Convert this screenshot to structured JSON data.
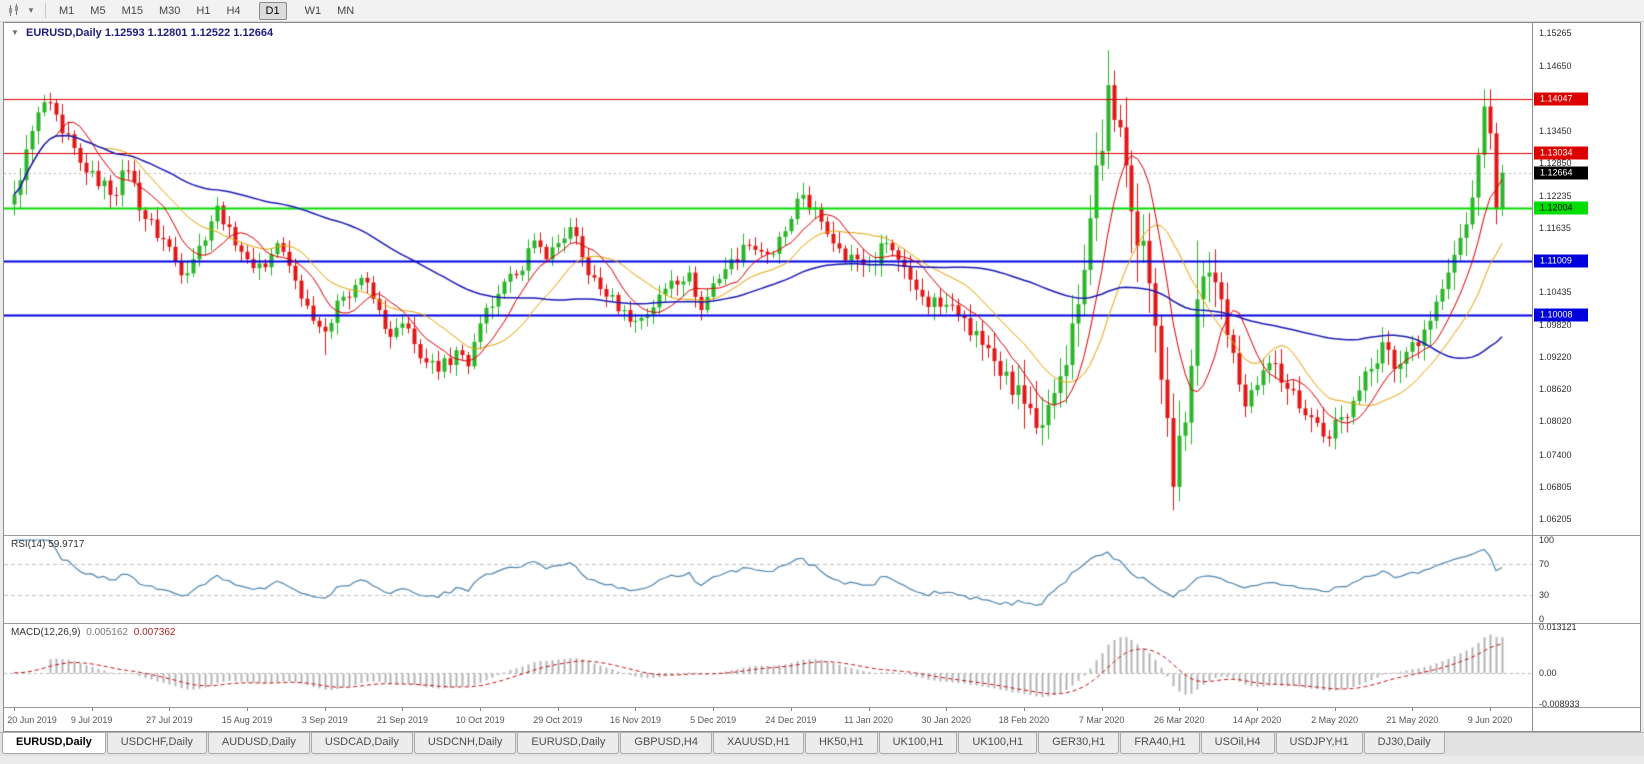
{
  "toolbar": {
    "timeframes": [
      "M1",
      "M5",
      "M15",
      "M30",
      "H1",
      "H4",
      "D1",
      "W1",
      "MN"
    ],
    "active_timeframe": "D1",
    "gap_before": [
      "D1",
      "W1"
    ]
  },
  "chart": {
    "collapse_icon": "▼",
    "title_symbol": "EURUSD,Daily",
    "ohlc_text": "1.12593 1.12801 1.12522 1.12664"
  },
  "indicators": {
    "rsi_label": "RSI(14) 59.9717",
    "macd_label": "MACD(12,26,9)",
    "macd_value": "0.005162",
    "macd_signal_value": "0.007362"
  },
  "chart_data": {
    "type": "candlestick",
    "symbol": "EURUSD",
    "period": "Daily",
    "num_candles": 250,
    "label_step": 13,
    "date_labels": [
      "20 Jun 2019",
      "9 Jul 2019",
      "27 Jul 2019",
      "15 Aug 2019",
      "3 Sep 2019",
      "21 Sep 2019",
      "10 Oct 2019",
      "29 Oct 2019",
      "16 Nov 2019",
      "5 Dec 2019",
      "24 Dec 2019",
      "11 Jan 2020",
      "30 Jan 2020",
      "18 Feb 2020",
      "7 Mar 2020",
      "26 Mar 2020",
      "14 Apr 2020",
      "2 May 2020",
      "21 May 2020",
      "9 Jun 2020"
    ],
    "price_axis": {
      "min": 1.059,
      "max": 1.1546,
      "ticks": [
        "1.15265",
        "1.14650",
        "1.13450",
        "1.12850",
        "1.12235",
        "1.11635",
        "1.10435",
        "1.09820",
        "1.09220",
        "1.08620",
        "1.08020",
        "1.07400",
        "1.06805",
        "1.06205"
      ]
    },
    "level_lines": [
      {
        "price": 1.14047,
        "label": "1.14047",
        "color": "#dd0000",
        "width": 1,
        "box_fg": "#ffffff"
      },
      {
        "price": 1.13034,
        "label": "1.13034",
        "color": "#dd0000",
        "width": 1,
        "box_fg": "#ffffff"
      },
      {
        "price": 1.12004,
        "label": "1.12004",
        "color": "#00dd00",
        "width": 2,
        "box_fg": "#000000"
      },
      {
        "price": 1.11009,
        "label": "1.11009",
        "color": "#0000dd",
        "width": 2,
        "box_fg": "#ffffff"
      },
      {
        "price": 1.10008,
        "label": "1.10008",
        "color": "#0000dd",
        "width": 2,
        "box_fg": "#ffffff"
      }
    ],
    "current_price": {
      "value": 1.12664,
      "label": "1.12664",
      "box_bg": "#000000",
      "box_fg": "#ffffff"
    },
    "price_anchors": [
      {
        "i": 0,
        "p": 1.1225,
        "v": 0.0055
      },
      {
        "i": 2,
        "p": 1.131
      },
      {
        "i": 5,
        "p": 1.1398,
        "h": 1.1412
      },
      {
        "i": 8,
        "p": 1.134
      },
      {
        "i": 11,
        "p": 1.1285
      },
      {
        "i": 13,
        "p": 1.127
      },
      {
        "i": 16,
        "p": 1.1225
      },
      {
        "i": 19,
        "p": 1.127
      },
      {
        "i": 22,
        "p": 1.118
      },
      {
        "i": 26,
        "p": 1.1128
      },
      {
        "i": 28,
        "p": 1.1075
      },
      {
        "i": 31,
        "p": 1.113
      },
      {
        "i": 34,
        "p": 1.1205
      },
      {
        "i": 36,
        "p": 1.1165
      },
      {
        "i": 39,
        "p": 1.1105,
        "v": 0.0045
      },
      {
        "i": 42,
        "p": 1.109
      },
      {
        "i": 44,
        "p": 1.1135
      },
      {
        "i": 47,
        "p": 1.1065
      },
      {
        "i": 50,
        "p": 1.099
      },
      {
        "i": 52,
        "p": 1.097,
        "l": 1.0926
      },
      {
        "i": 55,
        "p": 1.1035
      },
      {
        "i": 58,
        "p": 1.107
      },
      {
        "i": 61,
        "p": 1.101
      },
      {
        "i": 63,
        "p": 1.096
      },
      {
        "i": 65,
        "p": 1.0985
      },
      {
        "i": 68,
        "p": 1.092
      },
      {
        "i": 71,
        "p": 1.0895,
        "l": 1.088
      },
      {
        "i": 74,
        "p": 1.0935
      },
      {
        "i": 76,
        "p": 1.0905
      },
      {
        "i": 78,
        "p": 1.0985
      },
      {
        "i": 81,
        "p": 1.104
      },
      {
        "i": 84,
        "p": 1.1075
      },
      {
        "i": 87,
        "p": 1.114
      },
      {
        "i": 89,
        "p": 1.1105
      },
      {
        "i": 91,
        "p": 1.1135
      },
      {
        "i": 93,
        "p": 1.1165
      },
      {
        "i": 96,
        "p": 1.1075
      },
      {
        "i": 99,
        "p": 1.1035,
        "v": 0.004
      },
      {
        "i": 102,
        "p": 1.101
      },
      {
        "i": 104,
        "p": 1.099
      },
      {
        "i": 107,
        "p": 1.1015
      },
      {
        "i": 110,
        "p": 1.1065
      },
      {
        "i": 113,
        "p": 1.108
      },
      {
        "i": 115,
        "p": 1.101
      },
      {
        "i": 117,
        "p": 1.106
      },
      {
        "i": 120,
        "p": 1.1105
      },
      {
        "i": 123,
        "p": 1.113
      },
      {
        "i": 127,
        "p": 1.1115
      },
      {
        "i": 130,
        "p": 1.118
      },
      {
        "i": 132,
        "p": 1.1225
      },
      {
        "i": 135,
        "p": 1.1175
      },
      {
        "i": 138,
        "p": 1.1125
      },
      {
        "i": 141,
        "p": 1.1105
      },
      {
        "i": 143,
        "p": 1.1095
      },
      {
        "i": 146,
        "p": 1.1135
      },
      {
        "i": 149,
        "p": 1.109
      },
      {
        "i": 152,
        "p": 1.1035
      },
      {
        "i": 156,
        "p": 1.102
      },
      {
        "i": 159,
        "p": 1.0995,
        "v": 0.005
      },
      {
        "i": 162,
        "p": 1.0945
      },
      {
        "i": 166,
        "p": 1.0895,
        "v": 0.008
      },
      {
        "i": 169,
        "p": 1.0835
      },
      {
        "i": 171,
        "p": 1.079,
        "l": 1.0778,
        "v": 0.01
      },
      {
        "i": 174,
        "p": 1.0855
      },
      {
        "i": 177,
        "p": 1.0985
      },
      {
        "i": 179,
        "p": 1.1085,
        "v": 0.013
      },
      {
        "i": 181,
        "p": 1.128
      },
      {
        "i": 183,
        "p": 1.143,
        "h": 1.1495
      },
      {
        "i": 184,
        "p": 1.1365
      },
      {
        "i": 186,
        "p": 1.128
      },
      {
        "i": 188,
        "p": 1.113
      },
      {
        "i": 190,
        "p": 1.106,
        "v": 0.016
      },
      {
        "i": 192,
        "p": 1.088
      },
      {
        "i": 194,
        "p": 1.068,
        "l": 1.0636
      },
      {
        "i": 196,
        "p": 1.08
      },
      {
        "i": 198,
        "p": 1.103,
        "h": 1.114
      },
      {
        "i": 200,
        "p": 1.108,
        "v": 0.01
      },
      {
        "i": 202,
        "p": 1.103
      },
      {
        "i": 204,
        "p": 1.093
      },
      {
        "i": 206,
        "p": 1.083,
        "v": 0.007
      },
      {
        "i": 208,
        "p": 1.087
      },
      {
        "i": 211,
        "p": 1.091
      },
      {
        "i": 214,
        "p": 1.086
      },
      {
        "i": 217,
        "p": 1.081
      },
      {
        "i": 220,
        "p": 1.077,
        "v": 0.0055
      },
      {
        "i": 222,
        "p": 1.081
      },
      {
        "i": 224,
        "p": 1.084
      },
      {
        "i": 227,
        "p": 1.09
      },
      {
        "i": 229,
        "p": 1.095
      },
      {
        "i": 231,
        "p": 1.09
      },
      {
        "i": 234,
        "p": 1.095
      },
      {
        "i": 237,
        "p": 1.099
      },
      {
        "i": 240,
        "p": 1.108,
        "v": 0.0065
      },
      {
        "i": 243,
        "p": 1.117
      },
      {
        "i": 245,
        "p": 1.13
      },
      {
        "i": 246,
        "p": 1.139,
        "h": 1.1422
      },
      {
        "i": 247,
        "p": 1.134
      },
      {
        "i": 248,
        "p": 1.12,
        "l": 1.117
      },
      {
        "i": 249,
        "p": 1.12664,
        "v": 0.0075
      }
    ],
    "moving_averages": [
      {
        "period": 8,
        "color": "#dd0000"
      },
      {
        "period": 16,
        "color": "#e8a200"
      },
      {
        "period": 55,
        "color": "#1a1ab8"
      }
    ],
    "rsi": {
      "period": 14,
      "value": 59.9717,
      "ticks": [
        "100",
        "70",
        "30",
        "0"
      ],
      "levels": [
        70,
        30
      ]
    },
    "macd": {
      "params": "12,26,9",
      "macd": 0.005162,
      "signal": 0.007362,
      "ymax": 0.013121,
      "ymin": -0.008933,
      "ticks": [
        "0.013121",
        "0.00",
        "-0.008933"
      ]
    },
    "colors": {
      "up": "#2bb52b",
      "down": "#e01818",
      "rsi": "#4f86b0",
      "macd_hist": "#b4b4b4",
      "macd_signal": "#cc1111",
      "current_line": "#b8b8b8"
    }
  },
  "tabs": [
    {
      "label": "EURUSD,Daily",
      "active": true
    },
    {
      "label": "USDCHF,Daily"
    },
    {
      "label": "AUDUSD,Daily"
    },
    {
      "label": "USDCAD,Daily"
    },
    {
      "label": "USDCNH,Daily"
    },
    {
      "label": "EURUSD,Daily"
    },
    {
      "label": "GBPUSD,H4"
    },
    {
      "label": "XAUUSD,H1"
    },
    {
      "label": "HK50,H1"
    },
    {
      "label": "UK100,H1"
    },
    {
      "label": "UK100,H1"
    },
    {
      "label": "GER30,H1"
    },
    {
      "label": "FRA40,H1"
    },
    {
      "label": "USOil,H4"
    },
    {
      "label": "USDJPY,H1"
    },
    {
      "label": "DJ30,Daily"
    }
  ]
}
